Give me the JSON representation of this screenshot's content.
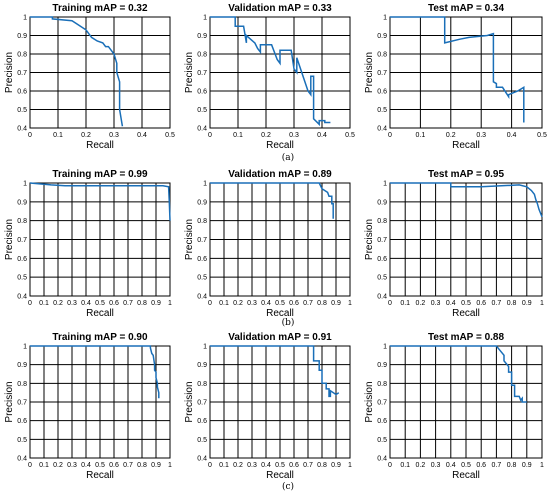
{
  "chart_data": [
    {
      "type": "line",
      "title": "Training mAP = 0.32",
      "xlabel": "Recall",
      "ylabel": "Precision",
      "xlim": [
        0,
        0.5
      ],
      "ylim": [
        0.4,
        1.0
      ],
      "grid": true,
      "xticks": [
        "0",
        "0.1",
        "0.2",
        "0.3",
        "0.4",
        "0.5"
      ],
      "yticks": [
        "0.4",
        "0.5",
        "0.6",
        "0.7",
        "0.8",
        "0.9",
        "1"
      ],
      "series": [
        {
          "x": [
            0,
            0.08,
            0.08,
            0.15,
            0.17,
            0.2,
            0.22,
            0.24,
            0.26,
            0.27,
            0.28,
            0.29,
            0.3,
            0.31,
            0.31,
            0.32,
            0.32,
            0.33
          ],
          "y": [
            1,
            1,
            0.99,
            0.98,
            0.96,
            0.93,
            0.89,
            0.87,
            0.86,
            0.84,
            0.84,
            0.82,
            0.8,
            0.75,
            0.7,
            0.65,
            0.5,
            0.41
          ]
        }
      ]
    },
    {
      "type": "line",
      "title": "Validation mAP = 0.33",
      "xlabel": "Recall",
      "ylabel": "Precision",
      "xlim": [
        0,
        0.5
      ],
      "ylim": [
        0.4,
        1.0
      ],
      "grid": true,
      "xticks": [
        "0",
        "0.1",
        "0.2",
        "0.3",
        "0.4",
        "0.5"
      ],
      "yticks": [
        "0.4",
        "0.5",
        "0.6",
        "0.7",
        "0.8",
        "0.9",
        "1"
      ],
      "series": [
        {
          "x": [
            0,
            0.09,
            0.09,
            0.12,
            0.13,
            0.13,
            0.16,
            0.17,
            0.18,
            0.18,
            0.22,
            0.24,
            0.25,
            0.25,
            0.29,
            0.3,
            0.31,
            0.31,
            0.35,
            0.36,
            0.36,
            0.37,
            0.37,
            0.39,
            0.39,
            0.41,
            0.41,
            0.43,
            0.43
          ],
          "y": [
            1,
            1,
            0.95,
            0.95,
            0.86,
            0.9,
            0.86,
            0.83,
            0.81,
            0.85,
            0.85,
            0.77,
            0.75,
            0.82,
            0.82,
            0.72,
            0.7,
            0.78,
            0.6,
            0.58,
            0.68,
            0.68,
            0.45,
            0.42,
            0.44,
            0.44,
            0.43,
            0.43,
            0.43
          ]
        }
      ]
    },
    {
      "type": "line",
      "title": "Test mAP = 0.34",
      "xlabel": "Recall",
      "ylabel": "Precision",
      "xlim": [
        0,
        0.5
      ],
      "ylim": [
        0.4,
        1.0
      ],
      "grid": true,
      "xticks": [
        "0",
        "0.1",
        "0.2",
        "0.3",
        "0.4",
        "0.5"
      ],
      "yticks": [
        "0.4",
        "0.5",
        "0.6",
        "0.7",
        "0.8",
        "0.9",
        "1"
      ],
      "series": [
        {
          "x": [
            0,
            0.18,
            0.18,
            0.23,
            0.26,
            0.32,
            0.34,
            0.34,
            0.35,
            0.35,
            0.37,
            0.39,
            0.39,
            0.42,
            0.44,
            0.44
          ],
          "y": [
            1,
            1,
            0.86,
            0.88,
            0.89,
            0.9,
            0.91,
            0.65,
            0.64,
            0.62,
            0.62,
            0.57,
            0.58,
            0.6,
            0.62,
            0.43
          ]
        }
      ]
    },
    {
      "type": "line",
      "title": "Training mAP = 0.99",
      "xlabel": "Recall",
      "ylabel": "Precision",
      "xlim": [
        0,
        1
      ],
      "ylim": [
        0.4,
        1.0
      ],
      "grid": true,
      "xticks": [
        "0",
        "0.1",
        "0.2",
        "0.3",
        "0.4",
        "0.5",
        "0.6",
        "0.7",
        "0.8",
        "0.9",
        "1"
      ],
      "yticks": [
        "0.4",
        "0.5",
        "0.6",
        "0.7",
        "0.8",
        "0.9",
        "1"
      ],
      "series": [
        {
          "x": [
            0,
            0.15,
            0.25,
            0.4,
            0.6,
            0.8,
            0.95,
            0.99,
            0.995,
            1
          ],
          "y": [
            1.0,
            0.99,
            0.985,
            0.985,
            0.985,
            0.985,
            0.985,
            0.98,
            0.9,
            0.8
          ]
        }
      ]
    },
    {
      "type": "line",
      "title": "Validation mAP = 0.89",
      "xlabel": "Recall",
      "ylabel": "Precision",
      "xlim": [
        0,
        1
      ],
      "ylim": [
        0.4,
        1.0
      ],
      "grid": true,
      "xticks": [
        "0",
        "0.1",
        "0.2",
        "0.3",
        "0.4",
        "0.5",
        "0.6",
        "0.7",
        "0.8",
        "0.9",
        "1"
      ],
      "yticks": [
        "0.4",
        "0.5",
        "0.6",
        "0.7",
        "0.8",
        "0.9",
        "1"
      ],
      "series": [
        {
          "x": [
            0,
            0.78,
            0.8,
            0.8,
            0.84,
            0.85,
            0.87,
            0.87,
            0.88,
            0.88
          ],
          "y": [
            1,
            1,
            0.97,
            0.97,
            0.95,
            0.93,
            0.93,
            0.89,
            0.89,
            0.81
          ]
        }
      ]
    },
    {
      "type": "line",
      "title": "Test mAP = 0.95",
      "xlabel": "Recall",
      "ylabel": "Precision",
      "xlim": [
        0,
        1
      ],
      "ylim": [
        0.4,
        1.0
      ],
      "grid": true,
      "xticks": [
        "0",
        "0.1",
        "0.2",
        "0.3",
        "0.4",
        "0.5",
        "0.6",
        "0.7",
        "0.8",
        "0.9",
        "1"
      ],
      "yticks": [
        "0.4",
        "0.5",
        "0.6",
        "0.7",
        "0.8",
        "0.9",
        "1"
      ],
      "series": [
        {
          "x": [
            0,
            0.4,
            0.4,
            0.6,
            0.85,
            0.9,
            0.93,
            0.95,
            0.96,
            0.97,
            0.98,
            0.99,
            1
          ],
          "y": [
            1,
            1,
            0.98,
            0.98,
            0.99,
            0.98,
            0.96,
            0.94,
            0.91,
            0.89,
            0.86,
            0.84,
            0.82
          ]
        }
      ]
    },
    {
      "type": "line",
      "title": "Training mAP = 0.90",
      "xlabel": "Recall",
      "ylabel": "Precision",
      "xlim": [
        0,
        1
      ],
      "ylim": [
        0.4,
        1.0
      ],
      "grid": true,
      "xticks": [
        "0",
        "0.1",
        "0.2",
        "0.3",
        "0.4",
        "0.5",
        "0.6",
        "0.7",
        "0.8",
        "0.9",
        "1"
      ],
      "yticks": [
        "0.4",
        "0.5",
        "0.6",
        "0.7",
        "0.8",
        "0.9",
        "1"
      ],
      "series": [
        {
          "x": [
            0,
            0.86,
            0.86,
            0.87,
            0.88,
            0.89,
            0.89,
            0.9,
            0.9,
            0.91,
            0.91,
            0.92,
            0.92
          ],
          "y": [
            1,
            1,
            0.99,
            0.96,
            0.95,
            0.9,
            0.87,
            0.86,
            0.83,
            0.8,
            0.78,
            0.75,
            0.72
          ]
        }
      ]
    },
    {
      "type": "line",
      "title": "Validation mAP = 0.91",
      "xlabel": "Recall",
      "ylabel": "Precision",
      "xlim": [
        0,
        1
      ],
      "ylim": [
        0.4,
        1.0
      ],
      "grid": true,
      "xticks": [
        "0",
        "0.1",
        "0.2",
        "0.3",
        "0.4",
        "0.5",
        "0.6",
        "0.7",
        "0.8",
        "0.9",
        "1"
      ],
      "yticks": [
        "0.4",
        "0.5",
        "0.6",
        "0.7",
        "0.8",
        "0.9",
        "1"
      ],
      "series": [
        {
          "x": [
            0,
            0.74,
            0.74,
            0.78,
            0.78,
            0.8,
            0.8,
            0.83,
            0.83,
            0.85,
            0.85,
            0.86,
            0.86,
            0.9,
            0.92
          ],
          "y": [
            1,
            1,
            0.92,
            0.92,
            0.87,
            0.87,
            0.8,
            0.8,
            0.77,
            0.77,
            0.73,
            0.73,
            0.76,
            0.74,
            0.75
          ]
        }
      ]
    },
    {
      "type": "line",
      "title": "Test mAP = 0.88",
      "xlabel": "Recall",
      "ylabel": "Precision",
      "xlim": [
        0,
        1
      ],
      "ylim": [
        0.4,
        1.0
      ],
      "grid": true,
      "xticks": [
        "0",
        "0.1",
        "0.2",
        "0.3",
        "0.4",
        "0.5",
        "0.6",
        "0.7",
        "0.8",
        "0.9",
        "1"
      ],
      "yticks": [
        "0.4",
        "0.5",
        "0.6",
        "0.7",
        "0.8",
        "0.9",
        "1"
      ],
      "series": [
        {
          "x": [
            0,
            0.7,
            0.72,
            0.75,
            0.75,
            0.78,
            0.78,
            0.8,
            0.8,
            0.82,
            0.82,
            0.85,
            0.86,
            0.87,
            0.87,
            0.9
          ],
          "y": [
            1,
            1,
            0.98,
            0.95,
            0.92,
            0.89,
            0.86,
            0.86,
            0.79,
            0.79,
            0.73,
            0.73,
            0.71,
            0.72,
            0.7,
            0.7
          ]
        }
      ]
    }
  ],
  "captions": [
    "(a)",
    "(b)",
    "(c)"
  ],
  "colors": {
    "curve": "#1a6fb8",
    "grid": "#000000",
    "background": "#ffffff"
  }
}
